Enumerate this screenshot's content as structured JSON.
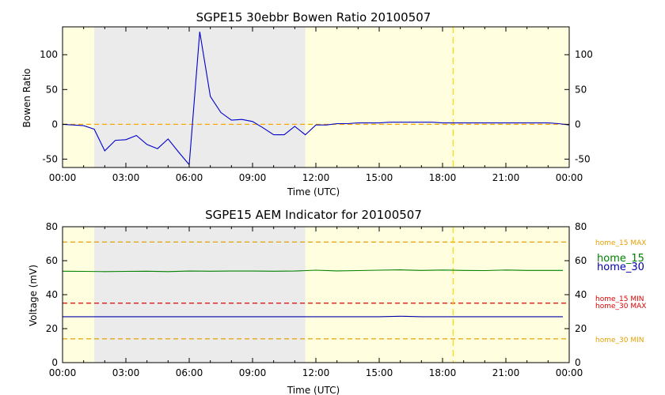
{
  "chart_data": [
    {
      "type": "line",
      "title": "SGPE15 30ebbr Bowen Ratio 20100507",
      "xlabel": "Time (UTC)",
      "ylabel": "Bowen Ratio",
      "xlim": [
        0,
        24
      ],
      "ylim": [
        -62,
        140
      ],
      "x_tick_labels": [
        "00:00",
        "03:00",
        "06:00",
        "09:00",
        "12:00",
        "15:00",
        "18:00",
        "21:00",
        "00:00"
      ],
      "y_ticks": [
        -50,
        0,
        50,
        100
      ],
      "night_shading_hours": [
        1.5,
        11.5
      ],
      "marker_hour": 18.5,
      "zero_line": 0,
      "colors": {
        "series": "#0000cc",
        "background_day": "#ffffe0",
        "background_night": "#ebebeb",
        "reference": "#ffa500",
        "marker": "#ffd700"
      },
      "series": [
        {
          "x": [
            0,
            0.5,
            1.0,
            1.5,
            2.0,
            2.5,
            3.0,
            3.5,
            4.0,
            4.5,
            5.0,
            5.5,
            6.0,
            6.5,
            7.0,
            7.5,
            8.0,
            8.5,
            9.0,
            9.5,
            10.0,
            10.5,
            11.0,
            11.5,
            12.0,
            12.5,
            13.0,
            13.5,
            14.0,
            14.5,
            15.0,
            15.5,
            16.0,
            16.5,
            17.0,
            17.5,
            18.0,
            18.5,
            19.0,
            19.5,
            20.0,
            20.5,
            21.0,
            21.5,
            22.0,
            22.5,
            23.0,
            23.5,
            24.0
          ],
          "values": [
            0,
            -1,
            -2,
            -7,
            -38,
            -23,
            -22,
            -16,
            -29,
            -35,
            -21,
            -40,
            -58,
            133,
            40,
            17,
            6,
            7,
            4,
            -5,
            -15,
            -15,
            -3,
            -15,
            -1,
            -1,
            1,
            1,
            2,
            2,
            2,
            3,
            3,
            3,
            3,
            3,
            2,
            2,
            2,
            2,
            2,
            2,
            2,
            2,
            2,
            2,
            2,
            1,
            -1
          ]
        }
      ]
    },
    {
      "type": "line",
      "title": "SGPE15 AEM Indicator for 20100507",
      "xlabel": "Time (UTC)",
      "ylabel": "Voltage (mV)",
      "xlim": [
        0,
        24
      ],
      "ylim": [
        0,
        80
      ],
      "x_tick_labels": [
        "00:00",
        "03:00",
        "06:00",
        "09:00",
        "12:00",
        "15:00",
        "18:00",
        "21:00",
        "00:00"
      ],
      "y_ticks": [
        0,
        20,
        40,
        60,
        80
      ],
      "night_shading_hours": [
        1.5,
        11.5
      ],
      "marker_hour": 18.5,
      "colors": {
        "background_day": "#ffffe0",
        "background_night": "#ebebeb",
        "marker": "#ffd700"
      },
      "series": [
        {
          "name": "home_15",
          "color": "#008000",
          "x": [
            0,
            1,
            2,
            3,
            4,
            5,
            6,
            7,
            8,
            9,
            10,
            11,
            12,
            13,
            14,
            15,
            16,
            17,
            18,
            19,
            20,
            21,
            22,
            23,
            23.7
          ],
          "values": [
            53.8,
            53.7,
            53.6,
            53.7,
            53.8,
            53.6,
            53.9,
            53.8,
            53.9,
            53.9,
            53.8,
            53.9,
            54.4,
            54.0,
            54.2,
            54.4,
            54.6,
            54.3,
            54.5,
            54.3,
            54.2,
            54.5,
            54.3,
            54.3,
            54.3
          ]
        },
        {
          "name": "home_30",
          "color": "#0000aa",
          "x": [
            0,
            2,
            4,
            6,
            8,
            10,
            12,
            14,
            15,
            16,
            17,
            18,
            20,
            22,
            23.7
          ],
          "values": [
            27.0,
            27.0,
            27.0,
            27.0,
            27.0,
            27.0,
            27.0,
            27.0,
            27.0,
            27.3,
            27.0,
            27.0,
            27.0,
            27.0,
            27.0
          ]
        }
      ],
      "reference_lines": [
        {
          "label": "home_15 MAX",
          "value": 71,
          "color": "#e5a000"
        },
        {
          "label": "home_15 MIN",
          "value": 35,
          "color": "#dd0000"
        },
        {
          "label": "home_30 MAX",
          "value": 35,
          "color": "#dd0000"
        },
        {
          "label": "home_30 MIN",
          "value": 14,
          "color": "#e5a000"
        }
      ],
      "legend": [
        {
          "label": "home_15",
          "color": "#008000"
        },
        {
          "label": "home_30",
          "color": "#0000aa"
        }
      ]
    }
  ]
}
